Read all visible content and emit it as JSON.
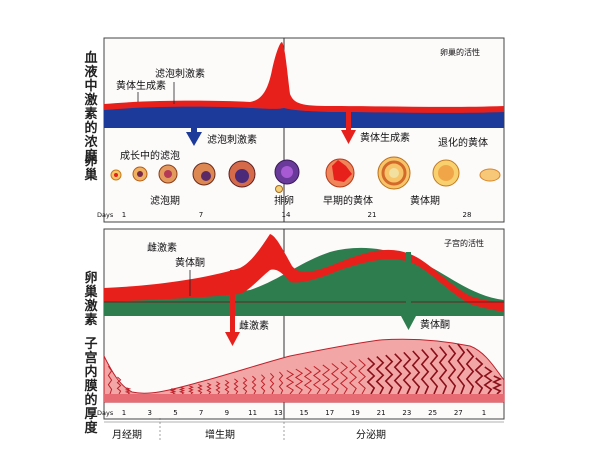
{
  "left_labels": {
    "blood_hormone": "血液中激素的浓度",
    "ovary": "卵巢",
    "ovarian_hormone": "卵巢激素",
    "endometrium": "子宫内膜的厚度"
  },
  "top_panel": {
    "title": "卵巢的活性",
    "lh_label": "黄体生成素",
    "fsh_label": "滤泡刺激素",
    "arrow_fsh_label": "滤泡刺激素",
    "arrow_lh_label": "黄体生成素",
    "growing_follicle": "成长中的滤泡",
    "regressing": "退化的黄体",
    "phase_follicular": "滤泡期",
    "ovulation": "排卵",
    "early_corpus": "早期的黄体",
    "corpus_luteum": "黄体期",
    "days_label": "Days",
    "days": [
      "1",
      "7",
      "14",
      "21",
      "28"
    ]
  },
  "bottom_panel": {
    "title": "子宫的活性",
    "estrogen_label": "雌激素",
    "progesterone_label": "黄体酮",
    "arrow_estrogen_label": "雌激素",
    "arrow_progesterone_label": "黄体酮",
    "days_label": "Days",
    "days": [
      "1",
      "3",
      "5",
      "7",
      "9",
      "11",
      "13",
      "15",
      "17",
      "19",
      "21",
      "23",
      "25",
      "27",
      "1"
    ],
    "phase_menstrual": "月经期",
    "phase_proliferative": "增生期",
    "phase_secretory": "分泌期"
  },
  "colors": {
    "red": "#e8201c",
    "blue": "#1c3a99",
    "green": "#2e7d4f",
    "endometrium": "#f2a7a6",
    "endometrium_dark": "#c0202a",
    "panel_bg": "#f7f2f2"
  }
}
